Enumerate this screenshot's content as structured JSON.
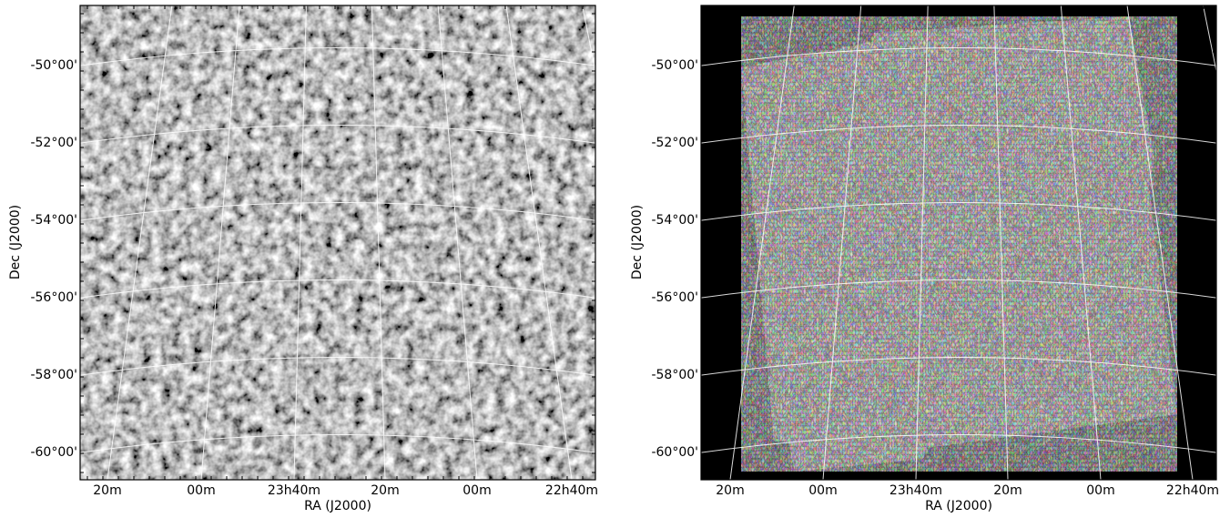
{
  "panels": [
    {
      "x_label": "RA (J2000)",
      "y_label": "Dec (J2000)",
      "x_ticks": [
        "20m",
        "00m",
        "23h40m",
        "20m",
        "00m",
        "22h40m"
      ],
      "y_ticks": [
        "-50°00'",
        "-52°00'",
        "-54°00'",
        "-56°00'",
        "-58°00'",
        "-60°00'"
      ]
    },
    {
      "x_label": "RA (J2000)",
      "y_label": "Dec (J2000)",
      "x_ticks": [
        "20m",
        "00m",
        "23h40m",
        "20m",
        "00m",
        "22h40m"
      ],
      "y_ticks": [
        "-50°00'",
        "-52°00'",
        "-54°00'",
        "-56°00'",
        "-58°00'",
        "-60°00'"
      ]
    }
  ]
}
